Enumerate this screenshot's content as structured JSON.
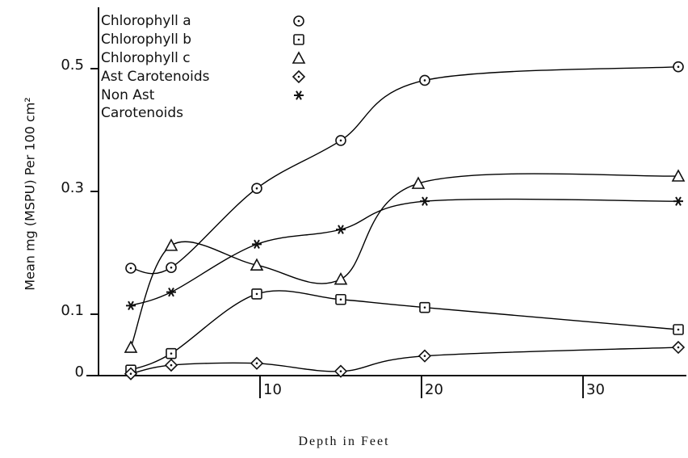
{
  "chart_data": {
    "type": "line",
    "xlabel": "Depth in Feet",
    "ylabel": "Mean mg (MSPU) Per 100 cm²",
    "xlim": [
      0,
      36
    ],
    "xticks": [
      10,
      20,
      30
    ],
    "ylim": [
      0,
      0.6
    ],
    "yticks": [
      0,
      0.1,
      0.3,
      0.5
    ],
    "series": [
      {
        "name": "Chlorophyll a",
        "color": "#000000",
        "marker": "circle-dot",
        "x": [
          2,
          4.5,
          9.8,
          15,
          20.2,
          35.9
        ],
        "values": [
          0.175,
          0.176,
          0.305,
          0.383,
          0.481,
          0.503
        ]
      },
      {
        "name": "Chlorophyll b",
        "color": "#000000",
        "marker": "square-dot",
        "x": [
          2,
          4.5,
          9.8,
          15,
          20.2,
          35.9
        ],
        "values": [
          0.009,
          0.036,
          0.133,
          0.124,
          0.111,
          0.075
        ]
      },
      {
        "name": "Chlorophyll c",
        "color": "#000000",
        "marker": "triangle",
        "x": [
          2,
          4.5,
          9.8,
          15,
          19.8,
          35.9
        ],
        "values": [
          0.046,
          0.212,
          0.18,
          0.157,
          0.313,
          0.325
        ]
      },
      {
        "name": "Ast Carotenoids",
        "color": "#000000",
        "marker": "diamond-dot",
        "x": [
          2,
          4.5,
          9.8,
          15,
          20.2,
          35.9
        ],
        "values": [
          0.003,
          0.017,
          0.02,
          0.007,
          0.032,
          0.046
        ]
      },
      {
        "name": "Non Ast Carotenoids",
        "color": "#000000",
        "marker": "star",
        "x": [
          2,
          4.5,
          9.8,
          15,
          20.2,
          35.9
        ],
        "values": [
          0.114,
          0.136,
          0.214,
          0.238,
          0.284,
          0.284
        ]
      }
    ]
  }
}
